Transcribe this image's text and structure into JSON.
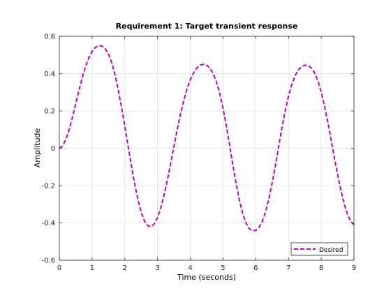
{
  "chart_data": {
    "type": "line",
    "title": "Requirement 1: Target transient response",
    "xlabel": "Time (seconds)",
    "ylabel": "Amplitude",
    "xlim": [
      0,
      9
    ],
    "ylim": [
      -0.6,
      0.6
    ],
    "x_ticks": [
      0,
      1,
      2,
      3,
      4,
      5,
      6,
      7,
      8,
      9
    ],
    "y_ticks": [
      -0.6,
      -0.4,
      -0.2,
      0,
      0.2,
      0.4,
      0.6
    ],
    "grid": true,
    "legend_location": "bottom-right",
    "series": [
      {
        "name": "Desired",
        "color": "#bf00bf",
        "line_style": "dashed",
        "x": [
          0,
          0.1,
          0.2,
          0.3,
          0.4,
          0.5,
          0.6,
          0.7,
          0.8,
          0.9,
          1.0,
          1.1,
          1.2,
          1.3,
          1.4,
          1.5,
          1.6,
          1.7,
          1.8,
          1.9,
          2.0,
          2.1,
          2.2,
          2.3,
          2.4,
          2.5,
          2.6,
          2.7,
          2.8,
          2.9,
          3.0,
          3.1,
          3.2,
          3.3,
          3.4,
          3.5,
          3.6,
          3.7,
          3.8,
          3.9,
          4.0,
          4.1,
          4.2,
          4.3,
          4.4,
          4.5,
          4.6,
          4.7,
          4.8,
          4.9,
          5.0,
          5.1,
          5.2,
          5.3,
          5.4,
          5.5,
          5.6,
          5.7,
          5.8,
          5.9,
          6.0,
          6.1,
          6.2,
          6.3,
          6.4,
          6.5,
          6.6,
          6.7,
          6.8,
          6.9,
          7.0,
          7.1,
          7.2,
          7.3,
          7.4,
          7.5,
          7.6,
          7.7,
          7.8,
          7.9,
          8.0,
          8.1,
          8.2,
          8.3,
          8.4,
          8.5,
          8.6,
          8.7,
          8.8,
          8.9,
          9.0
        ],
        "y": [
          0,
          0.012,
          0.047,
          0.1,
          0.166,
          0.238,
          0.311,
          0.379,
          0.438,
          0.485,
          0.519,
          0.54,
          0.55,
          0.548,
          0.534,
          0.505,
          0.459,
          0.394,
          0.313,
          0.219,
          0.117,
          0.011,
          -0.093,
          -0.19,
          -0.275,
          -0.343,
          -0.39,
          -0.415,
          -0.42,
          -0.405,
          -0.371,
          -0.318,
          -0.25,
          -0.17,
          -0.082,
          0.01,
          0.1,
          0.183,
          0.256,
          0.318,
          0.367,
          0.404,
          0.43,
          0.445,
          0.45,
          0.445,
          0.429,
          0.4,
          0.355,
          0.293,
          0.214,
          0.12,
          0.016,
          -0.09,
          -0.19,
          -0.278,
          -0.35,
          -0.401,
          -0.43,
          -0.442,
          -0.44,
          -0.424,
          -0.392,
          -0.34,
          -0.27,
          -0.186,
          -0.091,
          0.01,
          0.11,
          0.202,
          0.28,
          0.342,
          0.388,
          0.42,
          0.438,
          0.445,
          0.443,
          0.43,
          0.403,
          0.36,
          0.3,
          0.225,
          0.14,
          0.046,
          -0.05,
          -0.142,
          -0.226,
          -0.298,
          -0.354,
          -0.392,
          -0.41
        ]
      }
    ]
  }
}
